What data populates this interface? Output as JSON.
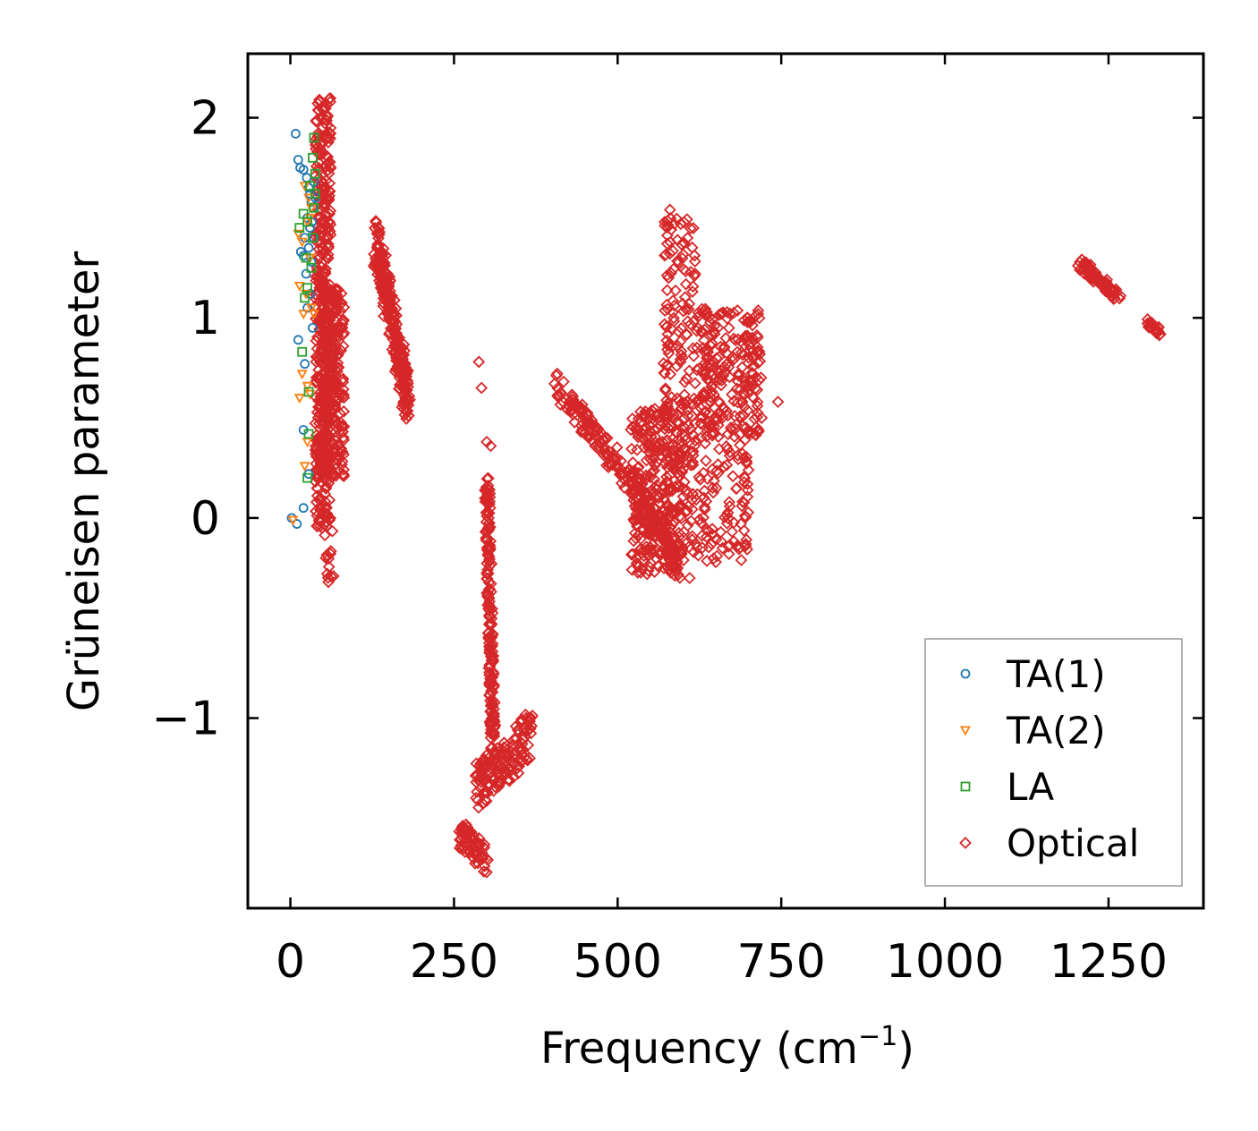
{
  "chart_data": {
    "type": "scatter",
    "xlabel": "Frequency (cm",
    "xlabel_sup": "−1",
    "xlabel_close": ")",
    "ylabel": "Grüneisen parameter",
    "xlim": [
      -65,
      1395
    ],
    "ylim": [
      -1.95,
      2.32
    ],
    "xticks": [
      0,
      250,
      500,
      750,
      1000,
      1250
    ],
    "xtick_labels": [
      "0",
      "250",
      "500",
      "750",
      "1000",
      "1250"
    ],
    "yticks": [
      2,
      1,
      0,
      -1
    ],
    "ytick_labels": [
      "2",
      "1",
      "0",
      "−1"
    ],
    "legend_position": "lower-right",
    "series": [
      {
        "name": "TA(1)",
        "marker": "circle",
        "color": "#1f77b4",
        "points": [
          [
            8,
            1.92
          ],
          [
            12,
            1.79
          ],
          [
            15,
            1.75
          ],
          [
            20,
            1.74
          ],
          [
            25,
            1.7
          ],
          [
            28,
            1.65
          ],
          [
            30,
            1.62
          ],
          [
            32,
            1.58
          ],
          [
            35,
            1.55
          ],
          [
            26,
            1.5
          ],
          [
            30,
            1.45
          ],
          [
            22,
            1.4
          ],
          [
            28,
            1.35
          ],
          [
            16,
            1.33
          ],
          [
            20,
            1.31
          ],
          [
            32,
            1.28
          ],
          [
            24,
            1.22
          ],
          [
            30,
            1.12
          ],
          [
            26,
            1.05
          ],
          [
            34,
            0.95
          ],
          [
            12,
            0.89
          ],
          [
            22,
            0.77
          ],
          [
            20,
            0.44
          ],
          [
            28,
            0.22
          ],
          [
            20,
            0.05
          ],
          [
            2,
            0.0
          ],
          [
            10,
            -0.03
          ],
          [
            36,
            1.68
          ],
          [
            38,
            1.6
          ],
          [
            33,
            1.48
          ],
          [
            36,
            1.4
          ]
        ]
      },
      {
        "name": "TA(2)",
        "marker": "triangle-down",
        "color": "#ff7f0e",
        "points": [
          [
            22,
            1.66
          ],
          [
            28,
            1.6
          ],
          [
            32,
            1.55
          ],
          [
            30,
            1.5
          ],
          [
            26,
            1.48
          ],
          [
            12,
            1.42
          ],
          [
            18,
            1.38
          ],
          [
            30,
            1.3
          ],
          [
            14,
            1.16
          ],
          [
            24,
            1.12
          ],
          [
            32,
            1.05
          ],
          [
            20,
            1.02
          ],
          [
            36,
            1.02
          ],
          [
            18,
            0.72
          ],
          [
            26,
            0.66
          ],
          [
            14,
            0.6
          ],
          [
            30,
            0.62
          ],
          [
            26,
            0.38
          ],
          [
            22,
            0.26
          ],
          [
            4,
            -0.01
          ]
        ]
      },
      {
        "name": "LA",
        "marker": "square",
        "color": "#2ca02c",
        "points": [
          [
            36,
            1.9
          ],
          [
            34,
            1.8
          ],
          [
            38,
            1.72
          ],
          [
            30,
            1.66
          ],
          [
            20,
            1.52
          ],
          [
            26,
            1.48
          ],
          [
            14,
            1.45
          ],
          [
            34,
            1.4
          ],
          [
            24,
            1.3
          ],
          [
            32,
            1.25
          ],
          [
            26,
            1.15
          ],
          [
            22,
            1.1
          ],
          [
            18,
            0.83
          ],
          [
            28,
            0.63
          ],
          [
            28,
            0.42
          ],
          [
            26,
            0.2
          ],
          [
            38,
            1.62
          ],
          [
            36,
            1.55
          ]
        ]
      },
      {
        "name": "Optical",
        "marker": "diamond",
        "color": "#d62728",
        "clusters": [
          {
            "x": [
              38,
              62
            ],
            "y": [
              -0.05,
              2.1
            ],
            "n": 380
          },
          {
            "x": [
              48,
              82
            ],
            "y": [
              0.2,
              1.15
            ],
            "n": 260
          },
          {
            "x": [
              52,
              66
            ],
            "y": [
              -0.32,
              0.05
            ],
            "n": 18
          },
          {
            "line": [
              [
                130,
                1.4
              ],
              [
                180,
                0.58
              ]
            ],
            "spread": 0.12,
            "n": 260
          },
          {
            "line": [
              [
                260,
                -1.58
              ],
              [
                300,
                -1.72
              ]
            ],
            "spread": 0.07,
            "n": 70
          },
          {
            "line": [
              [
                285,
                -1.35
              ],
              [
                370,
                -1.08
              ]
            ],
            "spread": 0.12,
            "n": 150
          },
          {
            "line": [
              [
                300,
                0.2
              ],
              [
                310,
                -1.2
              ]
            ],
            "spread": 0.07,
            "n": 200
          },
          {
            "line": [
              [
                400,
                0.68
              ],
              [
                530,
                0.15
              ]
            ],
            "spread": 0.07,
            "n": 120
          },
          {
            "line": [
              [
                520,
                0.15
              ],
              [
                600,
                -0.25
              ]
            ],
            "spread": 0.1,
            "n": 110
          },
          {
            "x": [
              520,
              600
            ],
            "y": [
              -0.28,
              0.55
            ],
            "n": 300
          },
          {
            "x": [
              570,
              620
            ],
            "y": [
              0.25,
              1.5
            ],
            "n": 150
          },
          {
            "x": [
              620,
              720
            ],
            "y": [
              0.4,
              1.05
            ],
            "n": 240
          },
          {
            "x": [
              600,
              700
            ],
            "y": [
              -0.22,
              0.4
            ],
            "n": 120
          },
          {
            "line": [
              [
                1205,
                1.28
              ],
              [
                1265,
                1.1
              ]
            ],
            "spread": 0.03,
            "n": 90
          },
          {
            "line": [
              [
                1310,
                0.98
              ],
              [
                1330,
                0.92
              ]
            ],
            "spread": 0.02,
            "n": 25
          }
        ],
        "points": [
          [
            288,
            0.78
          ],
          [
            292,
            0.65
          ],
          [
            300,
            0.38
          ],
          [
            306,
            0.36
          ],
          [
            545,
            -0.28
          ],
          [
            610,
            -0.3
          ],
          [
            650,
            -0.22
          ],
          [
            670,
            -0.18
          ],
          [
            58,
            -0.32
          ],
          [
            700,
            0.24
          ],
          [
            690,
            0.06
          ],
          [
            720,
            0.5
          ],
          [
            745,
            0.58
          ],
          [
            580,
            1.54
          ]
        ]
      }
    ]
  }
}
